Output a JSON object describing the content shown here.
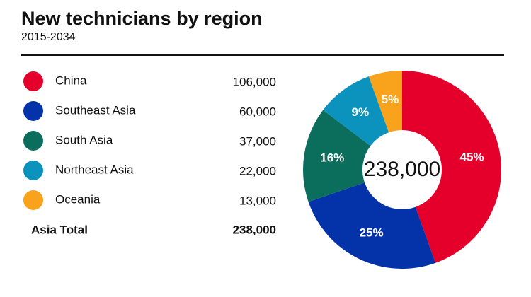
{
  "chart_data": {
    "type": "donut",
    "title": "New technicians by region",
    "subtitle": "2015-2034",
    "categories": [
      "China",
      "Southeast Asia",
      "South Asia",
      "Northeast Asia",
      "Oceania"
    ],
    "values": [
      106000,
      60000,
      37000,
      22000,
      13000
    ],
    "value_labels": [
      "106,000",
      "60,000",
      "37,000",
      "22,000",
      "13,000"
    ],
    "shares": [
      45,
      25,
      16,
      9,
      5
    ],
    "share_labels": [
      "45%",
      "25%",
      "16%",
      "9%",
      "5%"
    ],
    "colors": [
      "#e4002b",
      "#0432a8",
      "#0b6e5d",
      "#0b93be",
      "#f9a21b"
    ],
    "total_name": "Asia Total",
    "total": 238000,
    "total_label": "238,000"
  }
}
